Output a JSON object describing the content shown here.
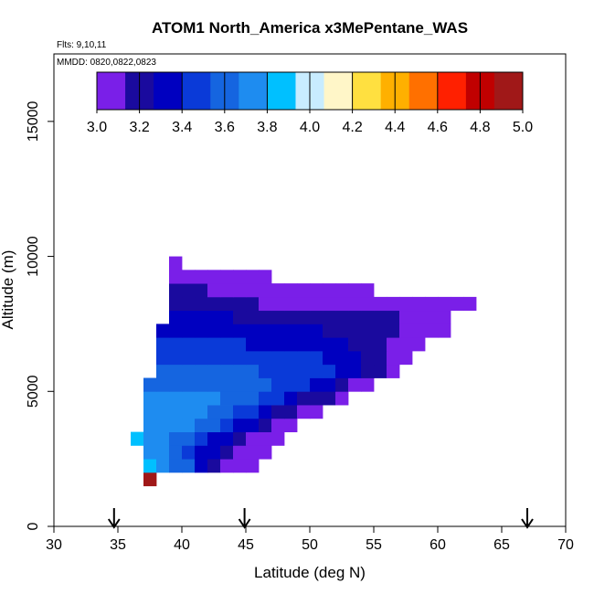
{
  "chart_data": {
    "type": "heatmap",
    "title": "ATOM1 North_America x3MePentane_WAS",
    "flights_label": "Flts: 9,10,11",
    "dates_label": "MMDD: 0820,0822,0823",
    "xlabel": "Latitude (deg N)",
    "ylabel": "Altitude (m)",
    "xlim": [
      30,
      70
    ],
    "ylim": [
      0,
      17500
    ],
    "x_ticks": [
      "30",
      "35",
      "40",
      "45",
      "50",
      "55",
      "60",
      "65",
      "70"
    ],
    "y_ticks": [
      "0",
      "5000",
      "10000",
      "15000"
    ],
    "colorbar": {
      "range": [
        3.0,
        5.0
      ],
      "ticks": [
        "3.0",
        "3.2",
        "3.4",
        "3.6",
        "3.8",
        "4.0",
        "4.2",
        "4.4",
        "4.6",
        "4.8",
        "5.0"
      ],
      "colors": [
        "#7a1fe8",
        "#1a0a9e",
        "#0000c0",
        "#0a3ad8",
        "#1565e0",
        "#1e8cf0",
        "#00c0ff",
        "#c8ecff",
        "#fff6c8",
        "#ffe040",
        "#ffb000",
        "#ff7000",
        "#ff2000",
        "#c00000",
        "#a01818"
      ]
    },
    "arrows_latitude": [
      34.7,
      44.9,
      67.0
    ],
    "cell_size": {
      "lat_deg": 1,
      "alt_m": 500
    },
    "rows": [
      {
        "alt": 1750,
        "start": 37,
        "values": [
          4.95
        ]
      },
      {
        "alt": 2250,
        "start": 37,
        "values": [
          3.88,
          3.72,
          3.65,
          3.55,
          3.35,
          3.25,
          3.12,
          3.05,
          3.0
        ]
      },
      {
        "alt": 2750,
        "start": 37,
        "values": [
          3.8,
          3.7,
          3.6,
          3.5,
          3.4,
          3.3,
          3.2,
          3.1,
          3.05,
          3.0
        ]
      },
      {
        "alt": 3250,
        "start": 36,
        "values": [
          3.82,
          3.78,
          3.72,
          3.64,
          3.54,
          3.45,
          3.36,
          3.28,
          3.18,
          3.12,
          3.05,
          3.0
        ]
      },
      {
        "alt": 3750,
        "start": 37,
        "values": [
          3.8,
          3.8,
          3.75,
          3.7,
          3.62,
          3.54,
          3.46,
          3.38,
          3.28,
          3.2,
          3.12,
          3.05
        ]
      },
      {
        "alt": 4250,
        "start": 37,
        "values": [
          3.77,
          3.72,
          3.7,
          3.72,
          3.68,
          3.6,
          3.55,
          3.48,
          3.42,
          3.32,
          3.22,
          3.14,
          3.08,
          3.0
        ]
      },
      {
        "alt": 4750,
        "start": 37,
        "values": [
          3.7,
          3.7,
          3.7,
          3.72,
          3.72,
          3.68,
          3.64,
          3.6,
          3.54,
          3.48,
          3.42,
          3.36,
          3.26,
          3.2,
          3.14,
          3.05
        ]
      },
      {
        "alt": 5250,
        "start": 37,
        "values": [
          3.66,
          3.62,
          3.64,
          3.65,
          3.62,
          3.6,
          3.6,
          3.58,
          3.56,
          3.54,
          3.52,
          3.48,
          3.42,
          3.35,
          3.28,
          3.2,
          3.12,
          3.0
        ]
      },
      {
        "alt": 5750,
        "start": 38,
        "values": [
          3.55,
          3.56,
          3.56,
          3.55,
          3.55,
          3.55,
          3.55,
          3.54,
          3.52,
          3.52,
          3.5,
          3.48,
          3.45,
          3.42,
          3.38,
          3.3,
          3.22,
          3.14,
          3.05
        ]
      },
      {
        "alt": 6250,
        "start": 38,
        "values": [
          3.5,
          3.5,
          3.5,
          3.5,
          3.5,
          3.5,
          3.5,
          3.5,
          3.5,
          3.48,
          3.46,
          3.44,
          3.42,
          3.4,
          3.36,
          3.3,
          3.24,
          3.15,
          3.08,
          3.0
        ]
      },
      {
        "alt": 6750,
        "start": 38,
        "values": [
          3.45,
          3.45,
          3.45,
          3.44,
          3.44,
          3.42,
          3.42,
          3.4,
          3.4,
          3.38,
          3.38,
          3.36,
          3.34,
          3.32,
          3.3,
          3.26,
          3.22,
          3.18,
          3.12,
          3.08,
          3.02
        ]
      },
      {
        "alt": 7250,
        "start": 38,
        "values": [
          3.4,
          3.4,
          3.38,
          3.38,
          3.36,
          3.36,
          3.35,
          3.34,
          3.34,
          3.32,
          3.3,
          3.3,
          3.28,
          3.26,
          3.24,
          3.22,
          3.2,
          3.18,
          3.15,
          3.12,
          3.08,
          3.04,
          3.0
        ]
      },
      {
        "alt": 7750,
        "start": 39,
        "values": [
          3.3,
          3.3,
          3.28,
          3.28,
          3.28,
          3.26,
          3.26,
          3.24,
          3.24,
          3.22,
          3.22,
          3.2,
          3.2,
          3.18,
          3.18,
          3.16,
          3.15,
          3.14,
          3.12,
          3.1,
          3.06,
          3.02
        ]
      },
      {
        "alt": 8250,
        "start": 39,
        "values": [
          3.18,
          3.18,
          3.18,
          3.16,
          3.16,
          3.15,
          3.14,
          3.13,
          3.12,
          3.12,
          3.1,
          3.1,
          3.09,
          3.08,
          3.08,
          3.07,
          3.06,
          3.05,
          3.04,
          3.03,
          3.02,
          3.01,
          3.0,
          3.0
        ]
      },
      {
        "alt": 8750,
        "start": 39,
        "values": [
          3.18,
          3.15,
          3.14,
          3.12,
          3.1,
          3.08,
          3.07,
          3.06,
          3.06,
          3.05,
          3.04,
          3.03,
          3.02,
          3.01,
          3.0,
          3.0
        ]
      },
      {
        "alt": 9250,
        "start": 39,
        "values": [
          3.05,
          3.04,
          3.03,
          3.02,
          3.01,
          3.0,
          3.0,
          3.0
        ]
      },
      {
        "alt": 9750,
        "start": 39,
        "values": [
          3.02
        ]
      }
    ]
  }
}
